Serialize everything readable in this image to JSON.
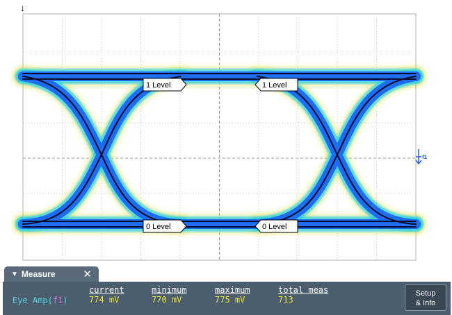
{
  "screen": {
    "trigger_marker": "↓",
    "channel_marker": "f1"
  },
  "level_tags": {
    "one_left": "1 Level",
    "one_right": "1 Level",
    "zero_left": "0 Level",
    "zero_right": "0 Level"
  },
  "measure": {
    "tab_label": "Measure",
    "close_glyph": "✕",
    "param_label": "Eye Amp",
    "param_source": "f1",
    "columns": [
      {
        "header": "current",
        "value": "774 mV"
      },
      {
        "header": "minimum",
        "value": "770 mV"
      },
      {
        "header": "maximum",
        "value": "775 mV"
      },
      {
        "header": "total meas",
        "value": "713"
      }
    ],
    "setup_button": {
      "line1": "Setup",
      "line2": "& Info"
    }
  },
  "colors": {
    "eye_core": "#0a0a2a",
    "eye_blue": "#1e6cf0",
    "eye_cyan": "#2ed0e8",
    "eye_yellow": "#f0e040",
    "panel": "#4c5d6e",
    "value_text": "#e8e83c",
    "param_text": "#54d2e0",
    "source_text": "#d07ad8"
  },
  "icons": [
    "trigger-arrow-icon",
    "chevron-down-icon",
    "close-icon",
    "channel-marker-icon"
  ]
}
